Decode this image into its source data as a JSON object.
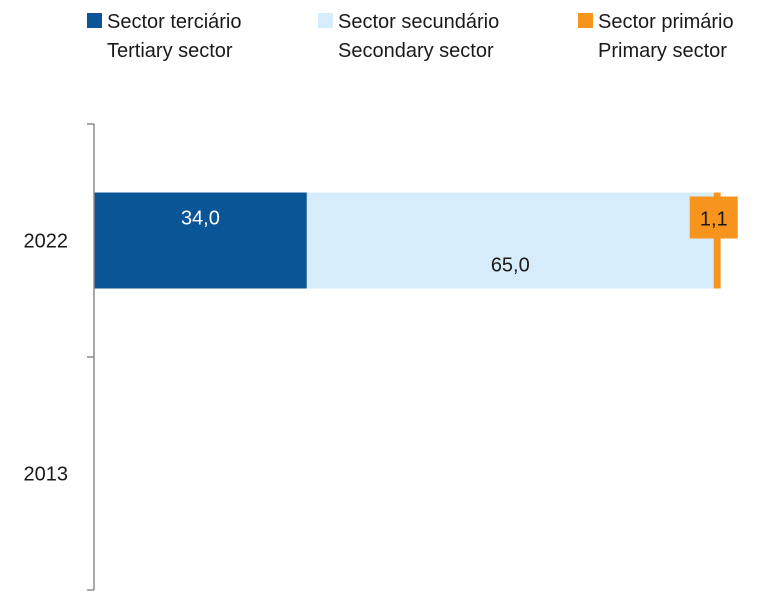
{
  "chart_data": {
    "type": "bar",
    "orientation": "horizontal",
    "stacked": true,
    "categories": [
      "2022",
      "2013"
    ],
    "series": [
      {
        "name": "Sector terciário / Tertiary sector",
        "values": [
          34.0,
          null
        ],
        "labels": [
          "34,0",
          ""
        ],
        "color": "#0a5596",
        "label_color": "#ffffff"
      },
      {
        "name": "Sector secundário / Secondary sector",
        "values": [
          65.0,
          null
        ],
        "labels": [
          "65,0",
          ""
        ],
        "color": "#d6ecfa",
        "label_color": "#1a1a1a"
      },
      {
        "name": "Sector primário / Primary sector",
        "values": [
          1.1,
          null
        ],
        "labels": [
          "1,1",
          ""
        ],
        "color": "#f7941d",
        "label_color": "#1a1a1a"
      }
    ],
    "xlim": [
      0,
      100
    ],
    "grid": false,
    "legend_position": "top"
  },
  "legend": [
    {
      "pt": "Sector terciário",
      "en": "Tertiary sector",
      "color": "#0a5596"
    },
    {
      "pt": "Sector secundário",
      "en": "Secondary sector",
      "color": "#d6ecfa"
    },
    {
      "pt": "Sector primário",
      "en": "Primary sector",
      "color": "#f7941d"
    }
  ]
}
